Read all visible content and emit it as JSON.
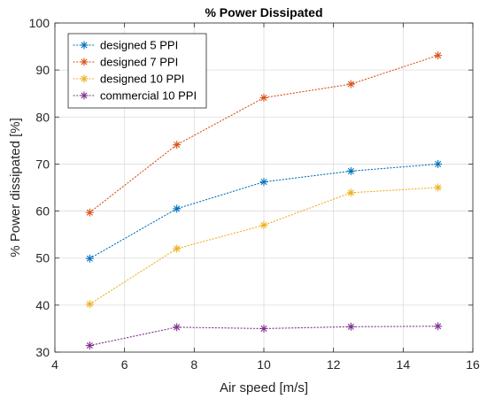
{
  "chart_data": {
    "type": "line",
    "title": "% Power Dissipated",
    "xlabel": "Air speed [m/s]",
    "ylabel": "% Power dissipated [%]",
    "xlim": [
      4,
      16
    ],
    "ylim": [
      30,
      100
    ],
    "xticks": [
      4,
      6,
      8,
      10,
      12,
      14,
      16
    ],
    "yticks": [
      30,
      40,
      50,
      60,
      70,
      80,
      90,
      100
    ],
    "grid": true,
    "legend_position": "top-left",
    "x": [
      5,
      7.5,
      10,
      12.5,
      15
    ],
    "series": [
      {
        "name": "designed 5 PPI",
        "color": "#0072BD",
        "values": [
          49.9,
          60.5,
          66.2,
          68.5,
          70.0
        ]
      },
      {
        "name": "designed 7 PPI",
        "color": "#D95319",
        "values": [
          59.7,
          74.1,
          84.1,
          87.0,
          93.1
        ]
      },
      {
        "name": "designed 10 PPI",
        "color": "#EDB120",
        "values": [
          40.2,
          52.0,
          57.0,
          63.9,
          65.0
        ]
      },
      {
        "name": "commercial 10 PPI",
        "color": "#7E2F8E",
        "values": [
          31.4,
          35.3,
          35.0,
          35.4,
          35.5
        ]
      }
    ]
  }
}
